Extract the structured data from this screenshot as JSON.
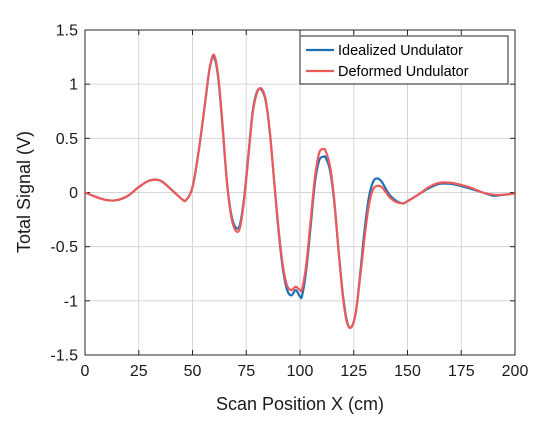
{
  "chart_data": {
    "type": "line",
    "xlabel": "Scan Position X (cm)",
    "ylabel": "Total Signal (V)",
    "xlim": [
      0,
      200
    ],
    "ylim": [
      -1.5,
      1.5
    ],
    "xticks": [
      0,
      25,
      50,
      75,
      100,
      125,
      150,
      175,
      200
    ],
    "yticks": [
      -1.5,
      -1,
      -0.5,
      0,
      0.5,
      1,
      1.5
    ],
    "xtick_labels": [
      "0",
      "25",
      "50",
      "75",
      "100",
      "125",
      "150",
      "175",
      "200"
    ],
    "ytick_labels": [
      "-1.5",
      "-1",
      "-0.5",
      "0",
      "0.5",
      "1",
      "1.5"
    ],
    "grid": true,
    "legend_position": "top-right",
    "series": [
      {
        "name": "Idealized Undulator",
        "color": "#1f6fb4",
        "x": [
          0,
          5,
          10,
          15,
          20,
          25,
          30,
          35,
          40,
          45,
          47,
          50,
          53,
          56,
          58,
          60,
          62,
          64,
          66,
          68,
          70,
          72,
          74,
          76,
          78,
          80,
          82,
          84,
          86,
          88,
          90,
          92,
          94,
          96,
          98,
          100,
          101,
          103,
          105,
          107,
          109,
          111,
          112,
          114,
          116,
          118,
          120,
          122,
          124,
          126,
          128,
          130,
          132,
          134,
          136,
          138,
          140,
          142,
          145,
          148,
          150,
          155,
          160,
          165,
          170,
          175,
          180,
          185,
          190,
          195,
          200
        ],
        "y": [
          0.0,
          -0.04,
          -0.07,
          -0.07,
          -0.03,
          0.05,
          0.11,
          0.11,
          0.03,
          -0.06,
          -0.07,
          0.05,
          0.4,
          0.85,
          1.15,
          1.25,
          1.05,
          0.6,
          0.1,
          -0.2,
          -0.32,
          -0.3,
          -0.05,
          0.35,
          0.75,
          0.93,
          0.95,
          0.85,
          0.55,
          0.1,
          -0.35,
          -0.7,
          -0.9,
          -0.95,
          -0.9,
          -0.96,
          -0.95,
          -0.7,
          -0.3,
          0.1,
          0.3,
          0.33,
          0.32,
          0.2,
          -0.1,
          -0.55,
          -0.95,
          -1.2,
          -1.24,
          -1.1,
          -0.75,
          -0.35,
          -0.05,
          0.1,
          0.13,
          0.1,
          0.03,
          -0.03,
          -0.08,
          -0.1,
          -0.08,
          -0.02,
          0.04,
          0.08,
          0.08,
          0.06,
          0.03,
          0.0,
          -0.03,
          -0.02,
          -0.01
        ]
      },
      {
        "name": "Deformed Undulator",
        "color": "#ee5a5a",
        "x": [
          0,
          5,
          10,
          15,
          20,
          25,
          30,
          35,
          40,
          45,
          47,
          50,
          53,
          56,
          58,
          60,
          62,
          64,
          66,
          68,
          70,
          72,
          74,
          76,
          78,
          80,
          82,
          84,
          86,
          88,
          90,
          92,
          94,
          96,
          98,
          100,
          101,
          103,
          105,
          107,
          109,
          111,
          112,
          114,
          116,
          118,
          120,
          122,
          124,
          126,
          128,
          130,
          132,
          134,
          136,
          138,
          140,
          142,
          145,
          148,
          150,
          155,
          160,
          165,
          170,
          175,
          180,
          185,
          190,
          195,
          200
        ],
        "y": [
          0.0,
          -0.04,
          -0.07,
          -0.07,
          -0.03,
          0.05,
          0.11,
          0.11,
          0.03,
          -0.06,
          -0.07,
          0.05,
          0.4,
          0.85,
          1.15,
          1.27,
          1.07,
          0.62,
          0.1,
          -0.22,
          -0.35,
          -0.33,
          -0.07,
          0.33,
          0.73,
          0.92,
          0.96,
          0.86,
          0.55,
          0.1,
          -0.33,
          -0.67,
          -0.86,
          -0.9,
          -0.87,
          -0.9,
          -0.89,
          -0.65,
          -0.25,
          0.15,
          0.37,
          0.4,
          0.38,
          0.24,
          -0.08,
          -0.55,
          -0.97,
          -1.21,
          -1.24,
          -1.1,
          -0.78,
          -0.42,
          -0.12,
          0.03,
          0.06,
          0.05,
          0.0,
          -0.05,
          -0.09,
          -0.1,
          -0.08,
          -0.02,
          0.05,
          0.09,
          0.09,
          0.07,
          0.04,
          0.0,
          -0.02,
          -0.02,
          -0.01
        ]
      }
    ]
  }
}
